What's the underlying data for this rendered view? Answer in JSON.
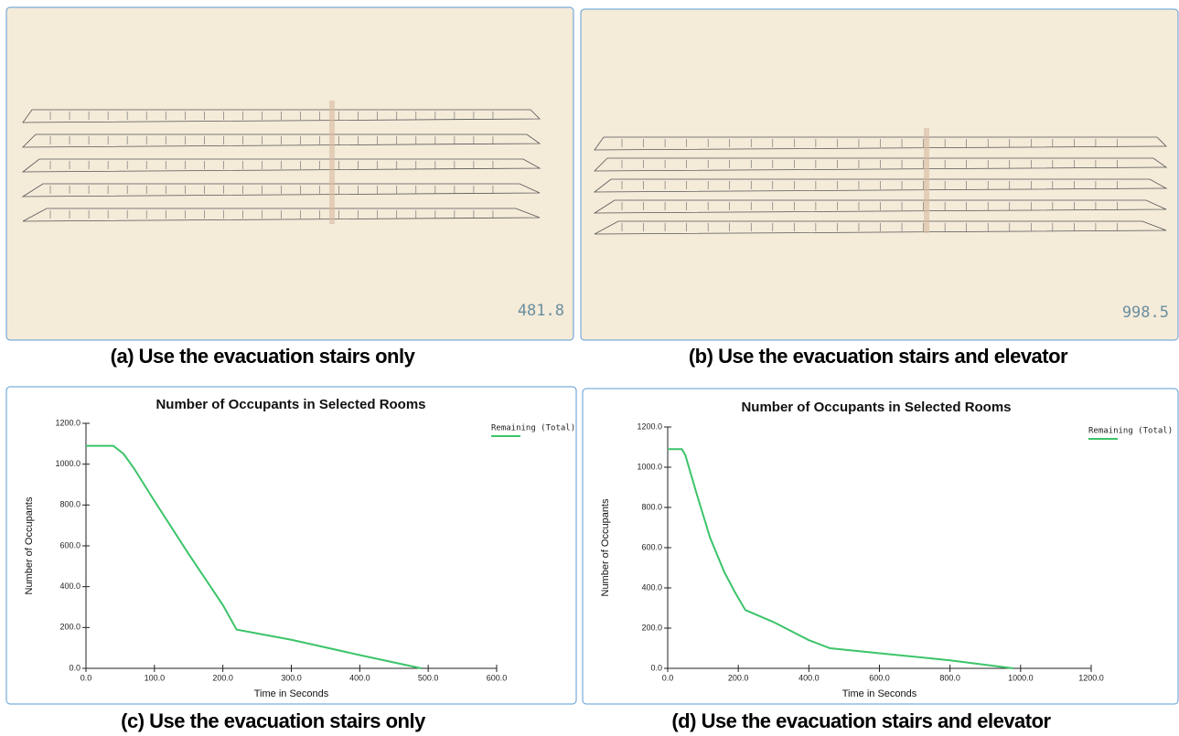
{
  "screenshots": [
    {
      "timer": "481.8",
      "caption": "(a) Use the evacuation stairs only"
    },
    {
      "timer": "998.5",
      "caption": "(b) Use the evacuation stairs and elevator"
    }
  ],
  "chart_data": [
    {
      "type": "line",
      "title": "Number of Occupants in Selected Rooms",
      "x_label": "Time in Seconds",
      "y_label": "Number of Occupants",
      "caption": "(c) Use the evacuation stairs only",
      "x": [
        0,
        40,
        55,
        70,
        100,
        150,
        200,
        220,
        300,
        400,
        490
      ],
      "series": [
        {
          "name": "Remaining (Total)",
          "color": "#3cc46a",
          "values": [
            1090,
            1090,
            1050,
            980,
            820,
            560,
            310,
            190,
            140,
            65,
            0
          ]
        }
      ],
      "xlim": [
        0,
        600
      ],
      "xticks": [
        {
          "value": 0,
          "label": "0.0"
        },
        {
          "value": 100,
          "label": "100.0"
        },
        {
          "value": 200,
          "label": "200.0"
        },
        {
          "value": 300,
          "label": "300.0"
        },
        {
          "value": 400,
          "label": "400.0"
        },
        {
          "value": 500,
          "label": "500.0"
        },
        {
          "value": 600,
          "label": "600.0"
        }
      ],
      "ylim": [
        0,
        1200
      ],
      "yticks": [
        {
          "value": 0,
          "label": "0.0"
        },
        {
          "value": 200,
          "label": "200.0"
        },
        {
          "value": 400,
          "label": "400.0"
        },
        {
          "value": 600,
          "label": "600.0"
        },
        {
          "value": 800,
          "label": "800.0"
        },
        {
          "value": 1000,
          "label": "1000.0"
        },
        {
          "value": 1200,
          "label": "1200.0"
        }
      ]
    },
    {
      "type": "line",
      "title": "Number of Occupants in Selected Rooms",
      "x_label": "Time in Seconds",
      "y_label": "Number of Occupants",
      "caption": "(d) Use the evacuation stairs and elevator",
      "x": [
        0,
        40,
        50,
        80,
        120,
        160,
        190,
        220,
        300,
        400,
        460,
        600,
        800,
        980
      ],
      "series": [
        {
          "name": "Remaining (Total)",
          "color": "#3cc46a",
          "values": [
            1090,
            1090,
            1060,
            880,
            650,
            480,
            380,
            290,
            230,
            140,
            100,
            75,
            40,
            0
          ]
        }
      ],
      "xlim": [
        0,
        1200
      ],
      "xticks": [
        {
          "value": 0,
          "label": "0.0"
        },
        {
          "value": 200,
          "label": "200.0"
        },
        {
          "value": 400,
          "label": "400.0"
        },
        {
          "value": 600,
          "label": "600.0"
        },
        {
          "value": 800,
          "label": "800.0"
        },
        {
          "value": 1000,
          "label": "1000.0"
        },
        {
          "value": 1200,
          "label": "1200.0"
        }
      ],
      "ylim": [
        0,
        1200
      ],
      "yticks": [
        {
          "value": 0,
          "label": "0.0"
        },
        {
          "value": 200,
          "label": "200.0"
        },
        {
          "value": 400,
          "label": "400.0"
        },
        {
          "value": 600,
          "label": "600.0"
        },
        {
          "value": 800,
          "label": "800.0"
        },
        {
          "value": 1000,
          "label": "1000.0"
        },
        {
          "value": 1200,
          "label": "1200.0"
        }
      ]
    }
  ]
}
